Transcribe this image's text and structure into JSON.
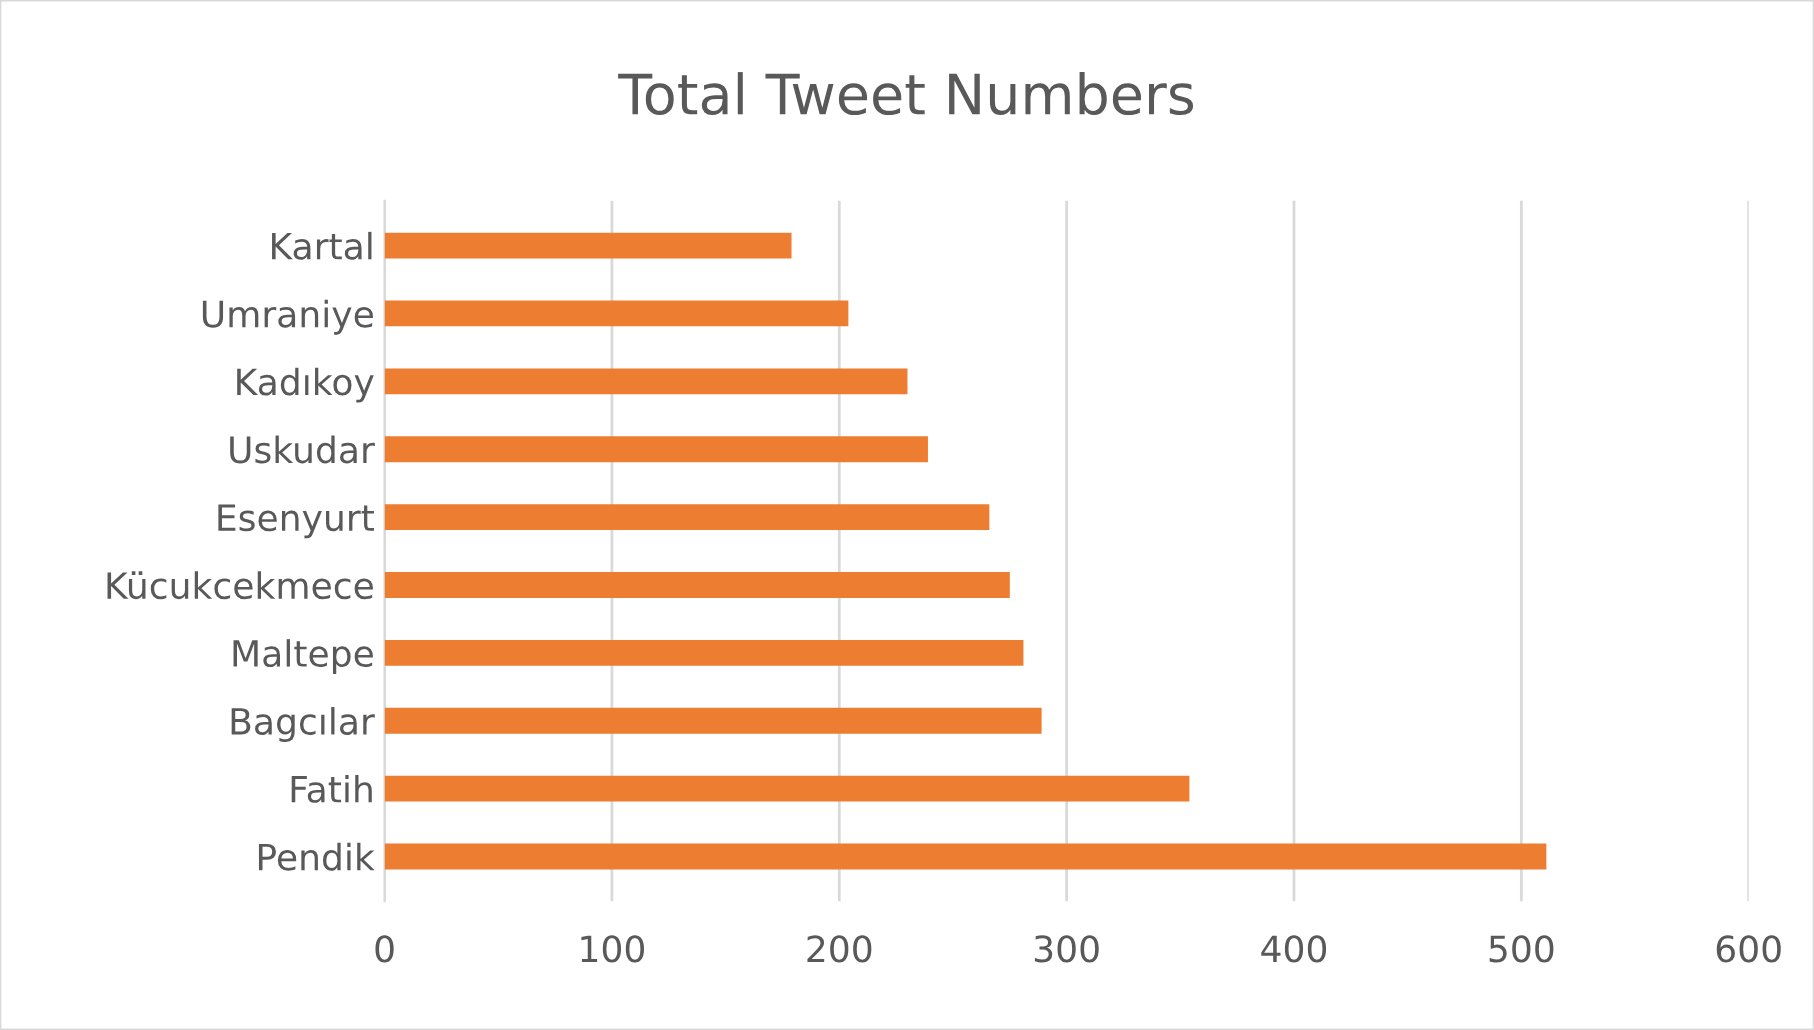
{
  "chart_data": {
    "type": "bar",
    "orientation": "horizontal",
    "title": "Total Tweet Numbers",
    "categories": [
      "Kartal",
      "Umraniye",
      "Kadıkoy",
      "Uskudar",
      "Esenyurt",
      "Kücukcekmece",
      "Maltepe",
      "Bagcılar",
      "Fatih",
      "Pendik"
    ],
    "values": [
      179,
      204,
      230,
      239,
      266,
      275,
      281,
      289,
      354,
      511
    ],
    "color": "#ed7d31",
    "xlim": [
      0,
      600
    ],
    "xticks": [
      0,
      100,
      200,
      300,
      400,
      500,
      600
    ],
    "grid": "x",
    "legend": false
  }
}
